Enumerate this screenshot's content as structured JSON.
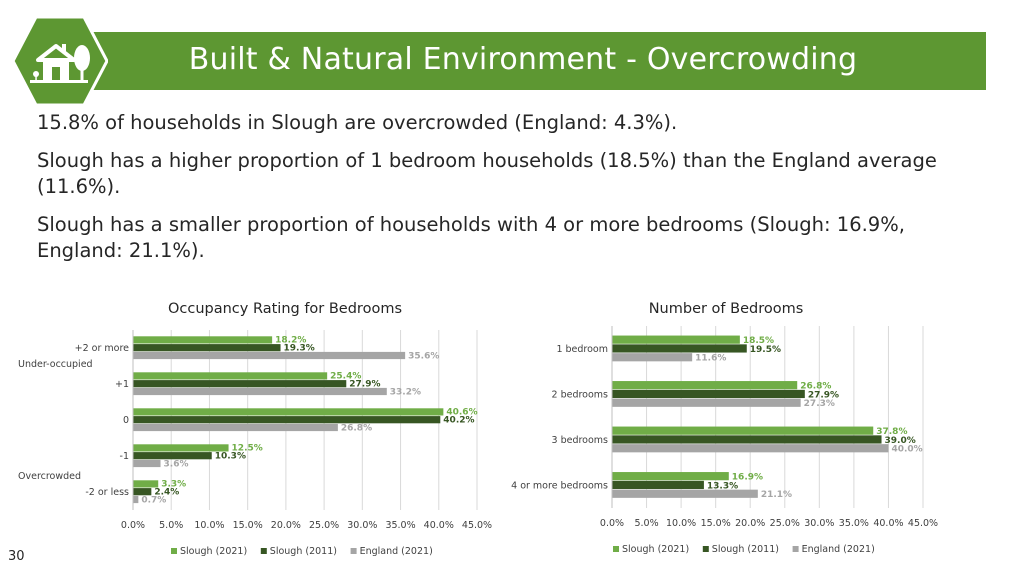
{
  "header": {
    "title": "Built & Natural Environment - Overcrowding",
    "icon": "house-tree-icon"
  },
  "bullets": [
    "15.8% of households in Slough are overcrowded (England: 4.3%).",
    "Slough has a higher proportion of 1 bedroom households (18.5%) than the England average (11.6%).",
    "Slough has a smaller proportion of households with 4 or more bedrooms (Slough: 16.9%, England: 21.1%)."
  ],
  "page_number": "30",
  "colors": {
    "slough2021": "#70ad47",
    "slough2011": "#375623",
    "england2021": "#a5a5a5",
    "banner": "#5d9732"
  },
  "chart_data": [
    {
      "type": "bar",
      "orientation": "horizontal",
      "title": "Occupancy Rating for Bedrooms",
      "categories": [
        "+2 or more",
        "+1",
        "0",
        "-1",
        "-2 or less"
      ],
      "group_labels": [
        "Under-occupied",
        "Overcrowded"
      ],
      "series": [
        {
          "name": "Slough (2021)",
          "values": [
            18.2,
            25.4,
            40.6,
            12.5,
            3.3
          ]
        },
        {
          "name": "Slough (2011)",
          "values": [
            19.3,
            27.9,
            40.2,
            10.3,
            2.4
          ]
        },
        {
          "name": "England (2021)",
          "values": [
            35.6,
            33.2,
            26.8,
            3.6,
            0.7
          ]
        }
      ],
      "xlim": [
        0,
        45
      ],
      "xticks": [
        "0.0%",
        "5.0%",
        "10.0%",
        "15.0%",
        "20.0%",
        "25.0%",
        "30.0%",
        "35.0%",
        "40.0%",
        "45.0%"
      ],
      "legend": "bottom",
      "grid": true
    },
    {
      "type": "bar",
      "orientation": "horizontal",
      "title": "Number of Bedrooms",
      "categories": [
        "1 bedroom",
        "2 bedrooms",
        "3 bedrooms",
        "4 or more bedrooms"
      ],
      "series": [
        {
          "name": "Slough (2021)",
          "values": [
            18.5,
            26.8,
            37.8,
            16.9
          ]
        },
        {
          "name": "Slough (2011)",
          "values": [
            19.5,
            27.9,
            39.0,
            13.3
          ]
        },
        {
          "name": "England (2021)",
          "values": [
            11.6,
            27.3,
            40.0,
            21.1
          ]
        }
      ],
      "xlim": [
        0,
        45
      ],
      "xticks": [
        "0.0%",
        "5.0%",
        "10.0%",
        "15.0%",
        "20.0%",
        "25.0%",
        "30.0%",
        "35.0%",
        "40.0%",
        "45.0%"
      ],
      "legend": "bottom",
      "grid": true
    }
  ]
}
